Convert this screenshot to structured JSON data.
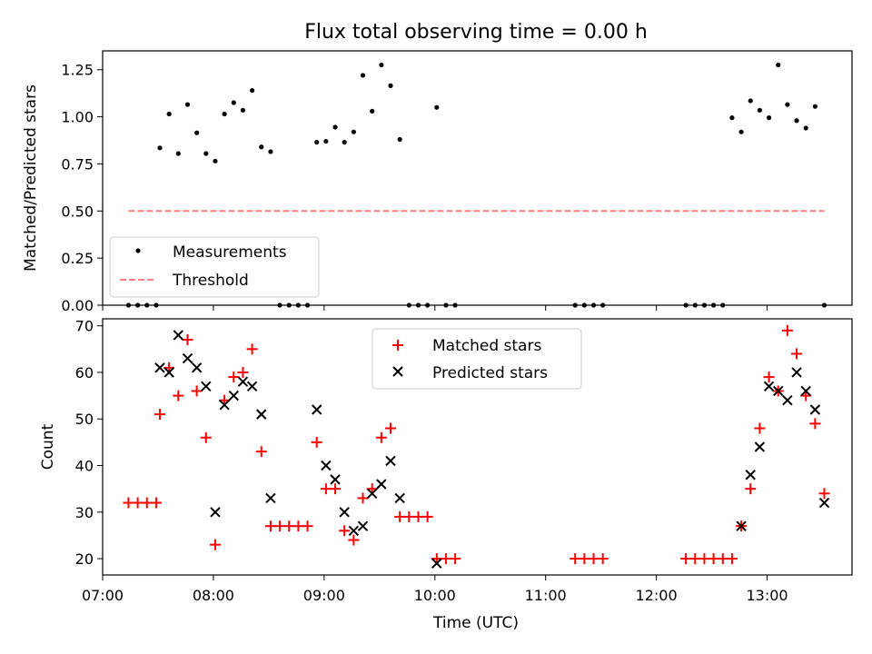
{
  "chart_data": [
    {
      "type": "scatter",
      "title": "Flux total observing time = 0.00 h",
      "xlabel": "",
      "ylabel": "Matched/Predicted stars",
      "ylim": [
        0,
        1.35
      ],
      "xlim": [
        "07:00",
        "13:46"
      ],
      "yticks": [
        "0.00",
        "0.25",
        "0.50",
        "0.75",
        "1.00",
        "1.25"
      ],
      "series": [
        {
          "name": "Measurements",
          "color": "#000000",
          "marker": "dot",
          "x": [
            "07:14",
            "07:19",
            "07:24",
            "07:29",
            "07:31",
            "07:36",
            "07:41",
            "07:46",
            "07:51",
            "07:56",
            "08:01",
            "08:06",
            "08:11",
            "08:16",
            "08:21",
            "08:26",
            "08:31",
            "08:36",
            "08:41",
            "08:46",
            "08:51",
            "08:56",
            "09:01",
            "09:06",
            "09:11",
            "09:16",
            "09:21",
            "09:26",
            "09:31",
            "09:36",
            "09:41",
            "09:46",
            "09:51",
            "09:56",
            "10:01",
            "10:06",
            "10:11",
            "11:16",
            "11:21",
            "11:26",
            "11:31",
            "12:16",
            "12:21",
            "12:26",
            "12:31",
            "12:36",
            "12:41",
            "12:46",
            "12:51",
            "12:56",
            "13:01",
            "13:06",
            "13:11",
            "13:16",
            "13:21",
            "13:26",
            "13:31"
          ],
          "y": [
            0,
            0,
            0,
            0,
            0.835,
            1.015,
            0.805,
            1.065,
            0.915,
            0.805,
            0.765,
            1.015,
            1.075,
            1.035,
            1.14,
            0.84,
            0.815,
            0,
            0,
            0,
            0,
            0.865,
            0.87,
            0.945,
            0.865,
            0.92,
            1.22,
            1.03,
            1.275,
            1.165,
            0.88,
            0,
            0,
            0,
            1.05,
            0,
            0,
            0,
            0,
            0,
            0,
            0,
            0,
            0,
            0,
            0,
            0.995,
            0.92,
            1.085,
            1.035,
            0.995,
            1.275,
            1.065,
            0.98,
            0.94,
            1.055,
            0
          ]
        },
        {
          "name": "Threshold",
          "color": "#ff8080",
          "style": "dashed",
          "x": [
            "07:14",
            "13:31"
          ],
          "y": [
            0.5,
            0.5
          ]
        }
      ],
      "legend": "lower-left"
    },
    {
      "type": "scatter",
      "title": "",
      "xlabel": "Time (UTC)",
      "ylabel": "Count",
      "ylim": [
        16.5,
        71.5
      ],
      "xlim": [
        "07:00",
        "13:46"
      ],
      "xticks": [
        "07:00",
        "08:00",
        "09:00",
        "10:00",
        "11:00",
        "12:00",
        "13:00"
      ],
      "yticks": [
        "20",
        "30",
        "40",
        "50",
        "60",
        "70"
      ],
      "series": [
        {
          "name": "Matched stars",
          "color": "#ff0000",
          "marker": "+",
          "x": [
            "07:14",
            "07:19",
            "07:24",
            "07:29",
            "07:31",
            "07:36",
            "07:41",
            "07:46",
            "07:51",
            "07:56",
            "08:01",
            "08:06",
            "08:11",
            "08:16",
            "08:21",
            "08:26",
            "08:31",
            "08:36",
            "08:41",
            "08:46",
            "08:51",
            "08:56",
            "09:01",
            "09:06",
            "09:11",
            "09:16",
            "09:21",
            "09:26",
            "09:31",
            "09:36",
            "09:41",
            "09:46",
            "09:51",
            "09:56",
            "10:01",
            "10:06",
            "10:11",
            "11:16",
            "11:21",
            "11:26",
            "11:31",
            "12:16",
            "12:21",
            "12:26",
            "12:31",
            "12:36",
            "12:41",
            "12:46",
            "12:51",
            "12:56",
            "13:01",
            "13:06",
            "13:11",
            "13:16",
            "13:21",
            "13:26",
            "13:31"
          ],
          "y": [
            32,
            32,
            32,
            32,
            51,
            61,
            55,
            67,
            56,
            46,
            23,
            54,
            59,
            60,
            65,
            43,
            27,
            27,
            27,
            27,
            27,
            45,
            35,
            35,
            26,
            24,
            33,
            35,
            46,
            48,
            29,
            29,
            29,
            29,
            20,
            20,
            20,
            20,
            20,
            20,
            20,
            20,
            20,
            20,
            20,
            20,
            20,
            27,
            35,
            48,
            59,
            56,
            69,
            64,
            55,
            49,
            34
          ]
        },
        {
          "name": "Predicted stars",
          "color": "#000000",
          "marker": "x",
          "x": [
            "07:31",
            "07:36",
            "07:41",
            "07:46",
            "07:51",
            "07:56",
            "08:01",
            "08:06",
            "08:11",
            "08:16",
            "08:21",
            "08:26",
            "08:31",
            "08:56",
            "09:01",
            "09:06",
            "09:11",
            "09:16",
            "09:21",
            "09:26",
            "09:31",
            "09:36",
            "09:41",
            "10:01",
            "12:46",
            "12:51",
            "12:56",
            "13:01",
            "13:06",
            "13:11",
            "13:16",
            "13:21",
            "13:26",
            "13:31"
          ],
          "y": [
            61,
            60,
            68,
            63,
            61,
            57,
            30,
            53,
            55,
            58,
            57,
            51,
            33,
            52,
            40,
            37,
            30,
            26,
            27,
            34,
            36,
            41,
            33,
            19,
            27,
            38,
            44,
            57,
            56,
            54,
            60,
            56,
            52,
            32
          ]
        }
      ],
      "legend": "top-center"
    }
  ]
}
